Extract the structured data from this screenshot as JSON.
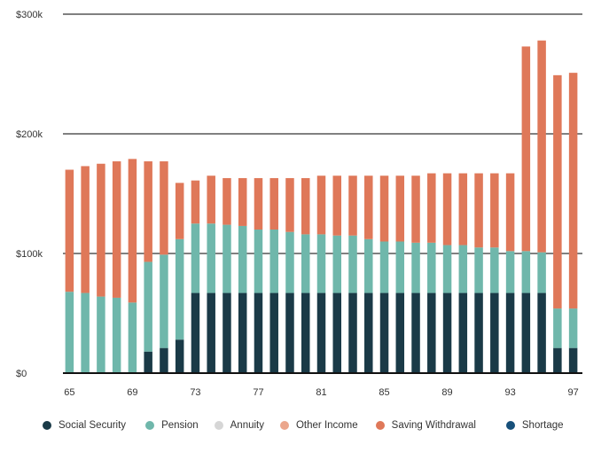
{
  "chart_data": {
    "type": "bar",
    "stacked": true,
    "title": "",
    "xlabel": "",
    "ylabel": "",
    "ylim": [
      0,
      300000
    ],
    "yticks": [
      {
        "value": 0,
        "label": "$0"
      },
      {
        "value": 100000,
        "label": "$100k"
      },
      {
        "value": 200000,
        "label": "$200k"
      },
      {
        "value": 300000,
        "label": "$300k"
      }
    ],
    "grid": true,
    "legend_position": "bottom",
    "categories": [
      "65",
      "66",
      "67",
      "68",
      "69",
      "70",
      "71",
      "72",
      "73",
      "74",
      "75",
      "76",
      "77",
      "78",
      "79",
      "80",
      "81",
      "82",
      "83",
      "84",
      "85",
      "86",
      "87",
      "88",
      "89",
      "90",
      "91",
      "92",
      "93",
      "94",
      "95",
      "96",
      "97"
    ],
    "xtick_labels": [
      "65",
      "69",
      "73",
      "77",
      "81",
      "85",
      "89",
      "93",
      "97"
    ],
    "series": [
      {
        "name": "Social Security",
        "color": "#1a3a47",
        "values": [
          0,
          0,
          0,
          0,
          0,
          18000,
          21000,
          28000,
          67000,
          67000,
          67000,
          67000,
          67000,
          67000,
          67000,
          67000,
          67000,
          67000,
          67000,
          67000,
          67000,
          67000,
          67000,
          67000,
          67000,
          67000,
          67000,
          67000,
          67000,
          67000,
          67000,
          21000,
          21000
        ]
      },
      {
        "name": "Pension",
        "color": "#6fb7ab",
        "values": [
          68000,
          67000,
          64000,
          63000,
          59000,
          75000,
          78000,
          84000,
          58000,
          58000,
          57000,
          56000,
          53000,
          53000,
          51000,
          49000,
          49000,
          48000,
          48000,
          45000,
          43000,
          43000,
          42000,
          42000,
          40000,
          40000,
          38000,
          38000,
          35000,
          35000,
          34000,
          33000,
          33000
        ]
      },
      {
        "name": "Annuity",
        "color": "#d6d6d6",
        "values": [
          0,
          0,
          0,
          0,
          0,
          0,
          0,
          0,
          0,
          0,
          0,
          0,
          0,
          0,
          0,
          0,
          0,
          0,
          0,
          0,
          0,
          0,
          0,
          0,
          0,
          0,
          0,
          0,
          0,
          0,
          0,
          0,
          0
        ]
      },
      {
        "name": "Other Income",
        "color": "#eba68c",
        "values": [
          0,
          0,
          0,
          0,
          0,
          0,
          0,
          0,
          0,
          0,
          0,
          0,
          0,
          0,
          0,
          0,
          0,
          0,
          0,
          0,
          0,
          0,
          0,
          0,
          0,
          0,
          0,
          0,
          0,
          0,
          0,
          0,
          0
        ]
      },
      {
        "name": "Saving Withdrawal",
        "color": "#df7859",
        "values": [
          102000,
          106000,
          111000,
          114000,
          120000,
          84000,
          78000,
          47000,
          36000,
          40000,
          39000,
          40000,
          43000,
          43000,
          45000,
          47000,
          49000,
          50000,
          50000,
          53000,
          55000,
          55000,
          56000,
          58000,
          60000,
          60000,
          62000,
          62000,
          65000,
          171000,
          177000,
          195000,
          197000
        ]
      },
      {
        "name": "Shortage",
        "color": "#17507a",
        "values": [
          0,
          0,
          0,
          0,
          0,
          0,
          0,
          0,
          0,
          0,
          0,
          0,
          0,
          0,
          0,
          0,
          0,
          0,
          0,
          0,
          0,
          0,
          0,
          0,
          0,
          0,
          0,
          0,
          0,
          0,
          0,
          0,
          0
        ]
      }
    ]
  },
  "colors": {
    "gridline": "#808080",
    "baseline": "#111111",
    "text": "#333333"
  }
}
